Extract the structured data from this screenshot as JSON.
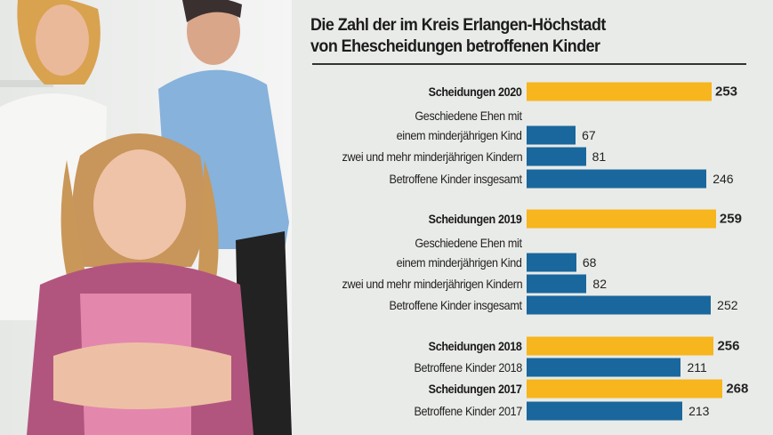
{
  "chart_data": {
    "type": "bar",
    "orientation": "horizontal",
    "title": "Die Zahl der im Kreis Erlangen-Höchstadt von Ehescheidungen betroffenen Kinder",
    "title_lines": [
      "Die Zahl der im Kreis Erlangen-Höchstadt",
      "von Ehescheidungen betroffenen Kinder"
    ],
    "colors": {
      "divorces": "#f7b51e",
      "children": "#1a679d"
    },
    "rows": [
      {
        "label": "Scheidungen 2020",
        "value": 253,
        "kind": "divorces",
        "bold": true
      },
      {
        "label": "Geschiedene Ehen mit",
        "value": null,
        "kind": "label"
      },
      {
        "label": "einem minderjährigen Kind",
        "value": 67,
        "kind": "children"
      },
      {
        "label": "zwei und mehr minderjährigen Kindern",
        "value": 81,
        "kind": "children"
      },
      {
        "label": "Betroffene Kinder insgesamt",
        "value": 246,
        "kind": "children"
      },
      {
        "label": "Scheidungen 2019",
        "value": 259,
        "kind": "divorces",
        "bold": true
      },
      {
        "label": "Geschiedene Ehen mit",
        "value": null,
        "kind": "label"
      },
      {
        "label": "einem minderjährigen Kind",
        "value": 68,
        "kind": "children"
      },
      {
        "label": "zwei und mehr minderjährigen Kindern",
        "value": 82,
        "kind": "children"
      },
      {
        "label": "Betroffene Kinder insgesamt",
        "value": 252,
        "kind": "children"
      },
      {
        "label": "Scheidungen 2018",
        "value": 256,
        "kind": "divorces",
        "bold": true
      },
      {
        "label": "Betroffene Kinder 2018",
        "value": 211,
        "kind": "children"
      },
      {
        "label": "Scheidungen 2017",
        "value": 268,
        "kind": "divorces",
        "bold": true
      },
      {
        "label": "Betroffene Kinder 2017",
        "value": 213,
        "kind": "children"
      }
    ]
  },
  "photo": {
    "description_icon": "family-photo"
  }
}
